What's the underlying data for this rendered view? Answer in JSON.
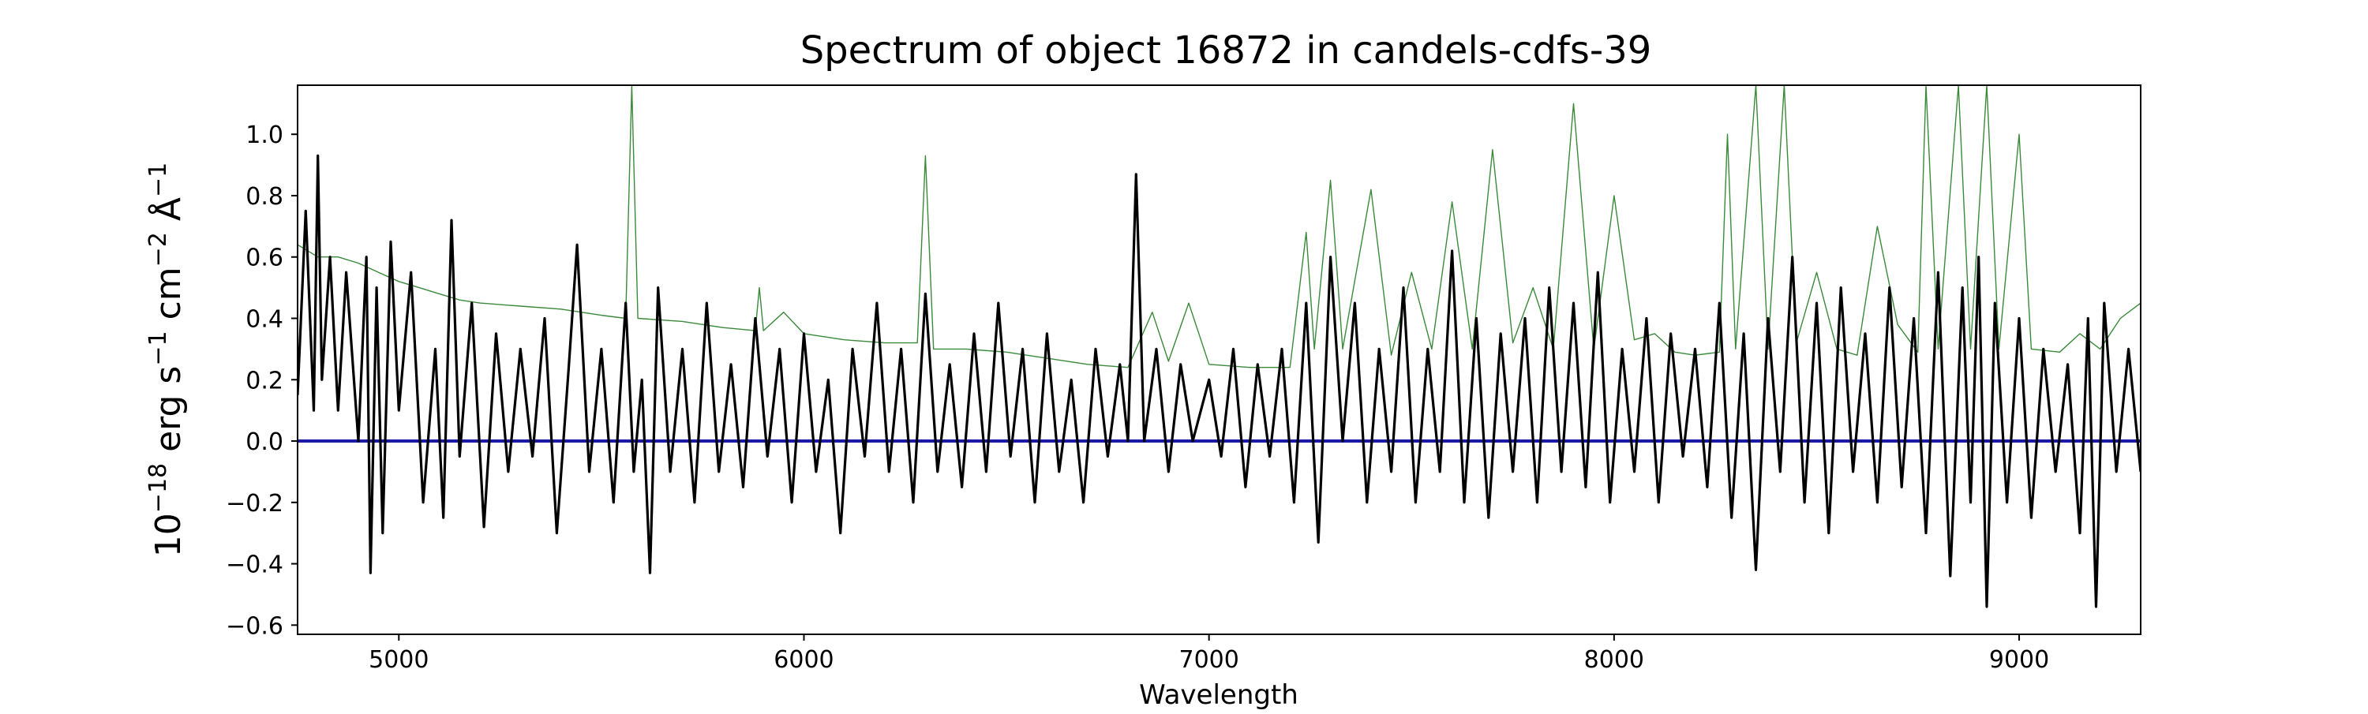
{
  "chart_data": {
    "type": "line",
    "title": "Spectrum of object 16872 in candels-cdfs-39",
    "xlabel": "Wavelength",
    "ylabel": {
      "base": "10",
      "base_exp": "−18",
      "unit1": " erg s",
      "unit1_exp": "−1",
      "unit2": " cm",
      "unit2_exp": "−2",
      "unit3": " Å",
      "unit3_exp": "−1"
    },
    "xlim": [
      4750,
      9300
    ],
    "ylim": [
      -0.63,
      1.16
    ],
    "x_ticks": [
      5000,
      6000,
      7000,
      8000,
      9000
    ],
    "x_tick_labels": [
      "5000",
      "6000",
      "7000",
      "8000",
      "9000"
    ],
    "y_ticks": [
      -0.6,
      -0.4,
      -0.2,
      0.0,
      0.2,
      0.4,
      0.6,
      0.8,
      1.0
    ],
    "y_tick_labels": [
      "−0.6",
      "−0.4",
      "−0.2",
      "0.0",
      "0.2",
      "0.4",
      "0.6",
      "0.8",
      "1.0"
    ],
    "grid": false,
    "series": [
      {
        "color": "#1a1aa6",
        "points": [
          [
            4750,
            0.0
          ],
          [
            9300,
            0.0
          ]
        ]
      },
      {
        "color": "#3a8a3a",
        "points": [
          [
            4750,
            0.64
          ],
          [
            4800,
            0.6
          ],
          [
            4850,
            0.6
          ],
          [
            4900,
            0.58
          ],
          [
            4950,
            0.55
          ],
          [
            5000,
            0.52
          ],
          [
            5050,
            0.5
          ],
          [
            5100,
            0.48
          ],
          [
            5150,
            0.46
          ],
          [
            5200,
            0.45
          ],
          [
            5300,
            0.44
          ],
          [
            5400,
            0.43
          ],
          [
            5500,
            0.41
          ],
          [
            5560,
            0.4
          ],
          [
            5575,
            1.16
          ],
          [
            5590,
            0.4
          ],
          [
            5700,
            0.39
          ],
          [
            5800,
            0.37
          ],
          [
            5880,
            0.36
          ],
          [
            5890,
            0.5
          ],
          [
            5900,
            0.36
          ],
          [
            5950,
            0.42
          ],
          [
            6000,
            0.35
          ],
          [
            6100,
            0.33
          ],
          [
            6200,
            0.32
          ],
          [
            6280,
            0.32
          ],
          [
            6300,
            0.93
          ],
          [
            6320,
            0.3
          ],
          [
            6400,
            0.3
          ],
          [
            6500,
            0.29
          ],
          [
            6600,
            0.27
          ],
          [
            6700,
            0.25
          ],
          [
            6800,
            0.24
          ],
          [
            6860,
            0.42
          ],
          [
            6900,
            0.26
          ],
          [
            6950,
            0.45
          ],
          [
            7000,
            0.25
          ],
          [
            7100,
            0.24
          ],
          [
            7200,
            0.24
          ],
          [
            7240,
            0.68
          ],
          [
            7260,
            0.3
          ],
          [
            7300,
            0.85
          ],
          [
            7330,
            0.3
          ],
          [
            7400,
            0.82
          ],
          [
            7450,
            0.28
          ],
          [
            7500,
            0.55
          ],
          [
            7550,
            0.3
          ],
          [
            7600,
            0.78
          ],
          [
            7650,
            0.3
          ],
          [
            7700,
            0.95
          ],
          [
            7750,
            0.32
          ],
          [
            7800,
            0.5
          ],
          [
            7850,
            0.3
          ],
          [
            7900,
            1.1
          ],
          [
            7950,
            0.3
          ],
          [
            8000,
            0.8
          ],
          [
            8050,
            0.33
          ],
          [
            8100,
            0.35
          ],
          [
            8150,
            0.29
          ],
          [
            8200,
            0.28
          ],
          [
            8260,
            0.29
          ],
          [
            8280,
            1.0
          ],
          [
            8300,
            0.3
          ],
          [
            8350,
            1.16
          ],
          [
            8380,
            0.3
          ],
          [
            8420,
            1.16
          ],
          [
            8450,
            0.32
          ],
          [
            8500,
            0.55
          ],
          [
            8550,
            0.3
          ],
          [
            8600,
            0.28
          ],
          [
            8650,
            0.7
          ],
          [
            8700,
            0.38
          ],
          [
            8750,
            0.29
          ],
          [
            8770,
            1.16
          ],
          [
            8800,
            0.3
          ],
          [
            8850,
            1.16
          ],
          [
            8880,
            0.3
          ],
          [
            8920,
            1.16
          ],
          [
            8950,
            0.3
          ],
          [
            9000,
            1.0
          ],
          [
            9030,
            0.3
          ],
          [
            9100,
            0.29
          ],
          [
            9150,
            0.35
          ],
          [
            9200,
            0.3
          ],
          [
            9250,
            0.4
          ],
          [
            9300,
            0.45
          ]
        ]
      },
      {
        "color": "#000000",
        "points": [
          [
            4750,
            0.15
          ],
          [
            4770,
            0.75
          ],
          [
            4790,
            0.1
          ],
          [
            4800,
            0.93
          ],
          [
            4810,
            0.2
          ],
          [
            4830,
            0.6
          ],
          [
            4850,
            0.1
          ],
          [
            4870,
            0.55
          ],
          [
            4900,
            0.0
          ],
          [
            4920,
            0.6
          ],
          [
            4930,
            -0.43
          ],
          [
            4945,
            0.5
          ],
          [
            4960,
            -0.3
          ],
          [
            4980,
            0.65
          ],
          [
            5000,
            0.1
          ],
          [
            5030,
            0.55
          ],
          [
            5060,
            -0.2
          ],
          [
            5090,
            0.3
          ],
          [
            5110,
            -0.25
          ],
          [
            5130,
            0.72
          ],
          [
            5150,
            -0.05
          ],
          [
            5180,
            0.45
          ],
          [
            5210,
            -0.28
          ],
          [
            5240,
            0.35
          ],
          [
            5270,
            -0.1
          ],
          [
            5300,
            0.3
          ],
          [
            5330,
            -0.05
          ],
          [
            5360,
            0.4
          ],
          [
            5390,
            -0.3
          ],
          [
            5420,
            0.25
          ],
          [
            5440,
            0.64
          ],
          [
            5470,
            -0.1
          ],
          [
            5500,
            0.3
          ],
          [
            5530,
            -0.2
          ],
          [
            5560,
            0.45
          ],
          [
            5580,
            -0.1
          ],
          [
            5600,
            0.2
          ],
          [
            5620,
            -0.43
          ],
          [
            5640,
            0.5
          ],
          [
            5670,
            -0.1
          ],
          [
            5700,
            0.3
          ],
          [
            5730,
            -0.2
          ],
          [
            5760,
            0.45
          ],
          [
            5790,
            -0.1
          ],
          [
            5820,
            0.25
          ],
          [
            5850,
            -0.15
          ],
          [
            5880,
            0.4
          ],
          [
            5910,
            -0.05
          ],
          [
            5940,
            0.3
          ],
          [
            5970,
            -0.2
          ],
          [
            6000,
            0.35
          ],
          [
            6030,
            -0.1
          ],
          [
            6060,
            0.2
          ],
          [
            6090,
            -0.3
          ],
          [
            6120,
            0.3
          ],
          [
            6150,
            -0.05
          ],
          [
            6180,
            0.45
          ],
          [
            6210,
            -0.1
          ],
          [
            6240,
            0.3
          ],
          [
            6270,
            -0.2
          ],
          [
            6300,
            0.48
          ],
          [
            6330,
            -0.1
          ],
          [
            6360,
            0.25
          ],
          [
            6390,
            -0.15
          ],
          [
            6420,
            0.35
          ],
          [
            6450,
            -0.1
          ],
          [
            6480,
            0.45
          ],
          [
            6510,
            -0.05
          ],
          [
            6540,
            0.3
          ],
          [
            6570,
            -0.2
          ],
          [
            6600,
            0.35
          ],
          [
            6630,
            -0.1
          ],
          [
            6660,
            0.2
          ],
          [
            6690,
            -0.2
          ],
          [
            6720,
            0.3
          ],
          [
            6750,
            -0.05
          ],
          [
            6780,
            0.25
          ],
          [
            6800,
            0.0
          ],
          [
            6820,
            0.87
          ],
          [
            6840,
            0.0
          ],
          [
            6870,
            0.3
          ],
          [
            6900,
            -0.1
          ],
          [
            6930,
            0.25
          ],
          [
            6960,
            0.0
          ],
          [
            7000,
            0.2
          ],
          [
            7030,
            -0.05
          ],
          [
            7060,
            0.3
          ],
          [
            7090,
            -0.15
          ],
          [
            7120,
            0.25
          ],
          [
            7150,
            -0.05
          ],
          [
            7180,
            0.3
          ],
          [
            7210,
            -0.2
          ],
          [
            7240,
            0.45
          ],
          [
            7270,
            -0.33
          ],
          [
            7300,
            0.6
          ],
          [
            7330,
            0.0
          ],
          [
            7360,
            0.45
          ],
          [
            7390,
            -0.2
          ],
          [
            7420,
            0.3
          ],
          [
            7450,
            -0.1
          ],
          [
            7480,
            0.5
          ],
          [
            7510,
            -0.2
          ],
          [
            7540,
            0.3
          ],
          [
            7570,
            -0.1
          ],
          [
            7600,
            0.62
          ],
          [
            7630,
            -0.2
          ],
          [
            7660,
            0.4
          ],
          [
            7690,
            -0.25
          ],
          [
            7720,
            0.35
          ],
          [
            7750,
            -0.1
          ],
          [
            7780,
            0.4
          ],
          [
            7810,
            -0.2
          ],
          [
            7840,
            0.5
          ],
          [
            7870,
            -0.1
          ],
          [
            7900,
            0.45
          ],
          [
            7930,
            -0.15
          ],
          [
            7960,
            0.55
          ],
          [
            7990,
            -0.2
          ],
          [
            8020,
            0.3
          ],
          [
            8050,
            -0.1
          ],
          [
            8080,
            0.4
          ],
          [
            8110,
            -0.2
          ],
          [
            8140,
            0.35
          ],
          [
            8170,
            -0.05
          ],
          [
            8200,
            0.3
          ],
          [
            8230,
            -0.15
          ],
          [
            8260,
            0.45
          ],
          [
            8290,
            -0.25
          ],
          [
            8320,
            0.35
          ],
          [
            8350,
            -0.42
          ],
          [
            8380,
            0.4
          ],
          [
            8410,
            -0.1
          ],
          [
            8440,
            0.6
          ],
          [
            8470,
            -0.2
          ],
          [
            8500,
            0.45
          ],
          [
            8530,
            -0.3
          ],
          [
            8560,
            0.5
          ],
          [
            8590,
            -0.1
          ],
          [
            8620,
            0.35
          ],
          [
            8650,
            -0.2
          ],
          [
            8680,
            0.5
          ],
          [
            8710,
            -0.15
          ],
          [
            8740,
            0.4
          ],
          [
            8770,
            -0.3
          ],
          [
            8800,
            0.55
          ],
          [
            8830,
            -0.44
          ],
          [
            8860,
            0.5
          ],
          [
            8880,
            -0.2
          ],
          [
            8900,
            0.6
          ],
          [
            8920,
            -0.54
          ],
          [
            8940,
            0.45
          ],
          [
            8970,
            -0.2
          ],
          [
            9000,
            0.4
          ],
          [
            9030,
            -0.25
          ],
          [
            9060,
            0.3
          ],
          [
            9090,
            -0.1
          ],
          [
            9120,
            0.25
          ],
          [
            9150,
            -0.3
          ],
          [
            9170,
            0.4
          ],
          [
            9190,
            -0.54
          ],
          [
            9210,
            0.45
          ],
          [
            9240,
            -0.1
          ],
          [
            9270,
            0.3
          ],
          [
            9300,
            -0.1
          ]
        ]
      }
    ]
  }
}
